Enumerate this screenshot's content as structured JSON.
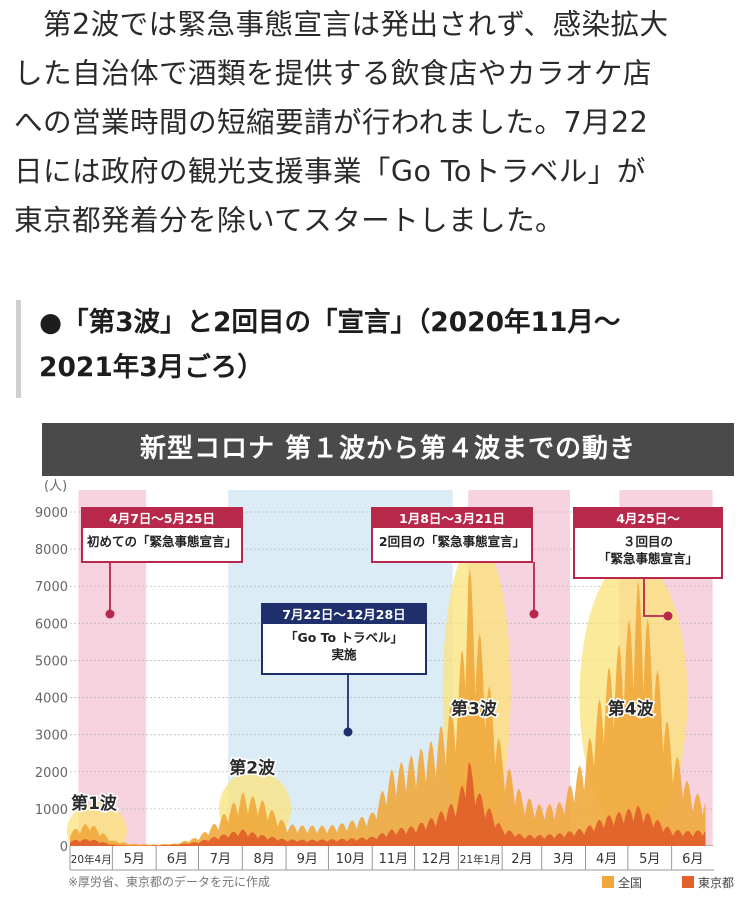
{
  "article": {
    "paragraph_lines": [
      "　第2波では緊急事態宣言は発出されず、感染拡大",
      "した自治体で酒類を提供する飲食店やカラオケ店",
      "への営業時間の短縮要請が行われました。7月22",
      "日には政府の観光支援事業「Go Toトラベル」が",
      "東京都発着分を除いてスタートしました。"
    ],
    "heading_lines": [
      "●「第3波」と2回目の「宣言」（2020年11月～",
      "2021年3月ごろ）"
    ]
  },
  "chart_data": {
    "type": "area",
    "title": "新型コロナ 第１波から第４波までの動き",
    "y_unit": "(人)",
    "ylim": [
      0,
      9000
    ],
    "y_ticks": [
      0,
      1000,
      2000,
      3000,
      4000,
      5000,
      6000,
      7000,
      8000,
      9000
    ],
    "x_labels": [
      "20年4月",
      "5月",
      "6月",
      "7月",
      "8月",
      "9月",
      "10月",
      "11月",
      "12月",
      "21年1月",
      "2月",
      "3月",
      "4月",
      "5月",
      "6月"
    ],
    "series": [
      {
        "name": "全国",
        "color": "#f0a83c",
        "x": [
          "2020-04-01",
          "2020-04-15",
          "2020-05-01",
          "2020-05-15",
          "2020-06-01",
          "2020-06-15",
          "2020-07-01",
          "2020-07-15",
          "2020-08-01",
          "2020-08-15",
          "2020-09-01",
          "2020-09-15",
          "2020-10-01",
          "2020-10-15",
          "2020-11-01",
          "2020-11-15",
          "2020-12-01",
          "2020-12-15",
          "2021-01-01",
          "2021-01-08",
          "2021-01-15",
          "2021-02-01",
          "2021-02-15",
          "2021-03-01",
          "2021-03-15",
          "2021-04-01",
          "2021-04-15",
          "2021-05-01",
          "2021-05-08",
          "2021-05-15",
          "2021-06-01",
          "2021-06-15",
          "2021-06-25"
        ],
        "values": [
          400,
          650,
          150,
          60,
          40,
          70,
          250,
          700,
          1450,
          1250,
          600,
          550,
          550,
          650,
          900,
          2100,
          2500,
          2900,
          4200,
          7800,
          6000,
          2500,
          1400,
          1100,
          1200,
          2500,
          4600,
          6000,
          7200,
          6200,
          2800,
          1500,
          1300
        ]
      },
      {
        "name": "東京都",
        "color": "#e0612a",
        "x": [
          "2020-04-01",
          "2020-04-15",
          "2020-05-01",
          "2020-05-15",
          "2020-06-01",
          "2020-06-15",
          "2020-07-01",
          "2020-07-15",
          "2020-08-01",
          "2020-08-15",
          "2020-09-01",
          "2020-09-15",
          "2020-10-01",
          "2020-10-15",
          "2020-11-01",
          "2020-11-15",
          "2020-12-01",
          "2020-12-15",
          "2021-01-01",
          "2021-01-08",
          "2021-01-15",
          "2021-02-01",
          "2021-02-15",
          "2021-03-01",
          "2021-03-15",
          "2021-04-01",
          "2021-04-15",
          "2021-05-01",
          "2021-05-08",
          "2021-05-15",
          "2021-06-01",
          "2021-06-15",
          "2021-06-25"
        ],
        "values": [
          150,
          200,
          40,
          10,
          20,
          40,
          120,
          280,
          450,
          300,
          180,
          170,
          180,
          200,
          250,
          450,
          550,
          800,
          1300,
          2400,
          1500,
          500,
          300,
          300,
          350,
          500,
          800,
          1000,
          1100,
          900,
          450,
          400,
          450
        ]
      }
    ],
    "periods": [
      {
        "label": "4月7日～5月25日",
        "type": "emergency",
        "start": "2020-04-07",
        "end": "2020-05-25",
        "caption": [
          "初めての「緊急事態宣言」"
        ]
      },
      {
        "label": "7月22日～12月28日",
        "type": "goto",
        "start": "2020-07-22",
        "end": "2020-12-28",
        "caption": [
          "「Go To トラベル」",
          "実施"
        ]
      },
      {
        "label": "1月8日～3月21日",
        "type": "emergency",
        "start": "2021-01-08",
        "end": "2021-03-21",
        "caption": [
          "2回目の「緊急事態宣言」"
        ]
      },
      {
        "label": "4月25日～",
        "type": "emergency",
        "start": "2021-04-25",
        "end": "2021-06-30",
        "caption": [
          "３回目の",
          "「緊急事態宣言」"
        ]
      }
    ],
    "waves": [
      "第1波",
      "第2波",
      "第3波",
      "第4波"
    ],
    "source_note": "※厚労省、東京都のデータを元に作成",
    "legend_position": "bottom-right",
    "grid": true
  }
}
